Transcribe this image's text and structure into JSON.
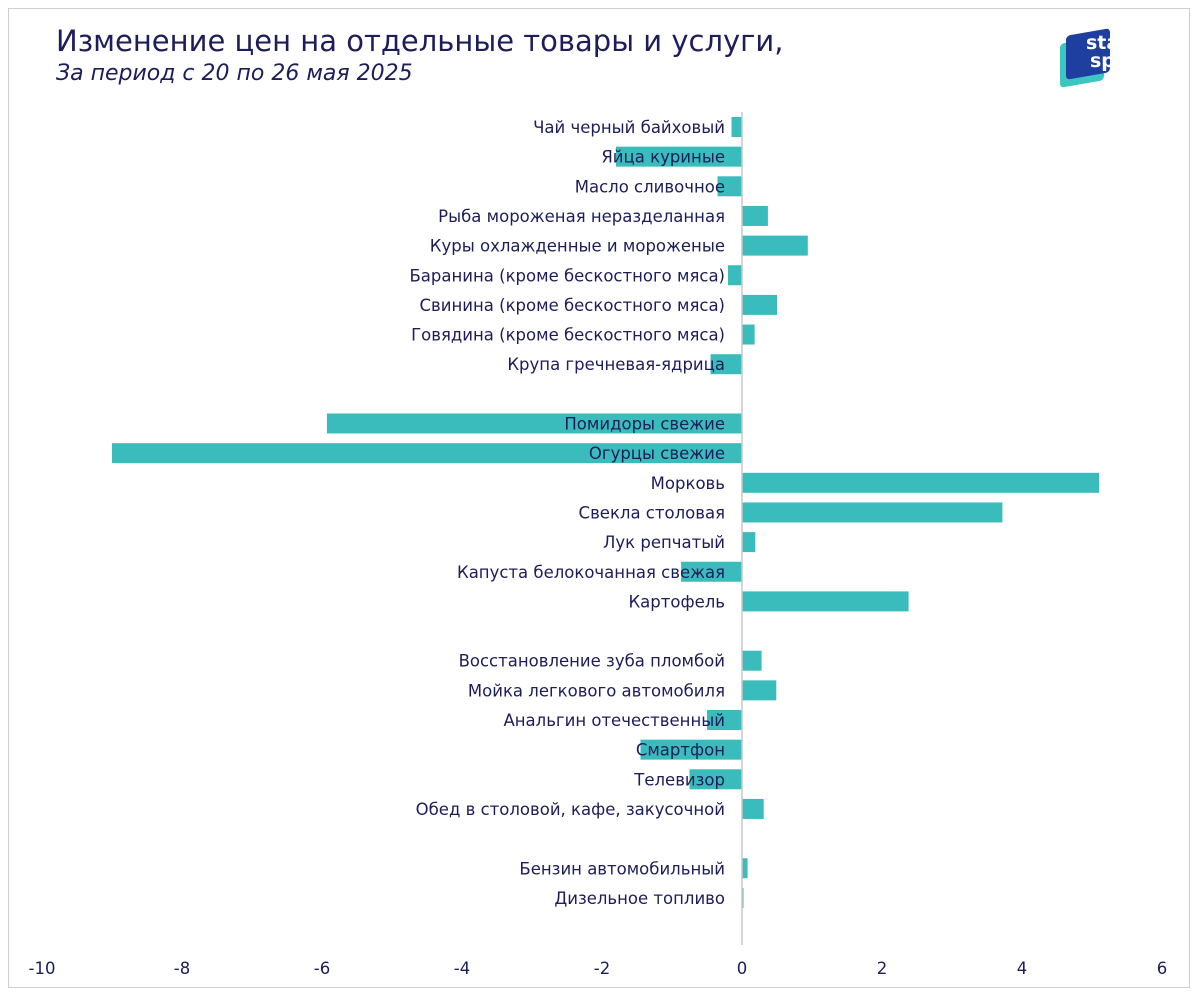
{
  "title": "Изменение цен на отдельные товары и услуги,",
  "subtitle": "За период с 20 по 26 мая 2025",
  "logo": {
    "line1": "stat",
    "line2": "space"
  },
  "colors": {
    "bar": "#3bbcbc",
    "text": "#1d1d5a",
    "axis": "#c8c8c8"
  },
  "chart_data": {
    "type": "bar",
    "orientation": "horizontal",
    "title": "Изменение цен на отдельные товары и услуги,",
    "subtitle": "За период с 20 по 26 мая 2025",
    "xlim": [
      -10,
      6
    ],
    "xticks": [
      "-10",
      "-8",
      "-6",
      "-4",
      "-2",
      "0",
      "2",
      "4",
      "6"
    ],
    "xtick_values": [
      -10,
      -8,
      -6,
      -4,
      -2,
      0,
      2,
      4,
      6
    ],
    "grid": false,
    "categories": [
      "Чай черный байховый",
      "Яйца куриные",
      "Масло сливочное",
      "Рыба мороженая неразделанная",
      "Куры охлажденные и мороженые",
      "Баранина (кроме бескостного мяса)",
      "Свинина (кроме бескостного мяса)",
      "Говядина (кроме бескостного мяса)",
      "Крупа гречневая-ядрица",
      "",
      "Помидоры свежие",
      "Огурцы свежие",
      "Морковь",
      "Свекла столовая",
      "Лук репчатый",
      "Капуста белокочанная свежая",
      "Картофель",
      "",
      "Восстановление зуба пломбой",
      "Мойка легкового автомобиля",
      "Анальгин отечественный",
      "Смартфон",
      "Телевизор",
      "Обед в столовой, кафе, закусочной",
      "",
      "Бензин автомобильный",
      "Дизельное топливо"
    ],
    "values": [
      -0.15,
      -1.8,
      -0.35,
      0.37,
      0.94,
      -0.2,
      0.5,
      0.18,
      -0.45,
      null,
      -5.93,
      -9.0,
      5.1,
      3.72,
      0.19,
      -0.87,
      2.38,
      null,
      0.28,
      0.49,
      -0.5,
      -1.45,
      -0.75,
      0.31,
      null,
      0.08,
      0.02
    ]
  }
}
